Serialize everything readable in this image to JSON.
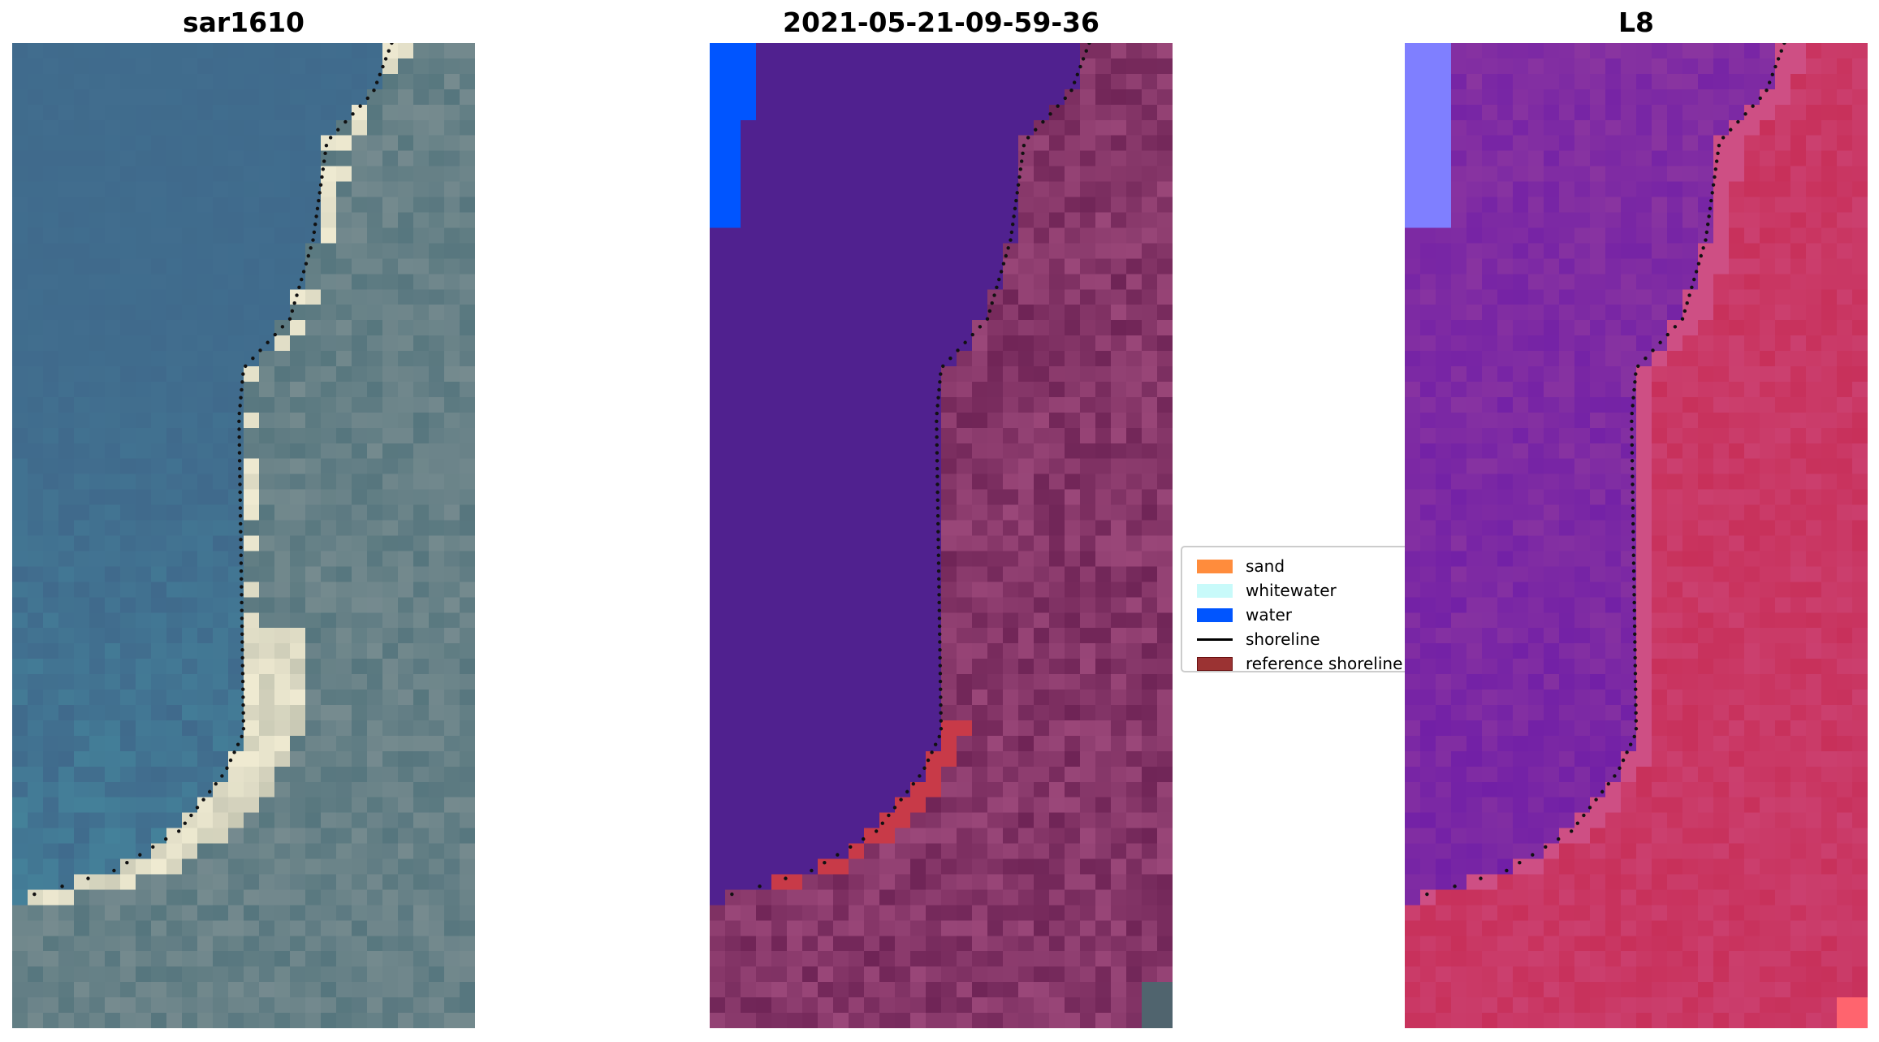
{
  "panels": [
    {
      "title": "sar1610",
      "kind": "rgb-image"
    },
    {
      "title": "2021-05-21-09-59-36",
      "kind": "classified-image"
    },
    {
      "title": "L8",
      "kind": "index-image"
    }
  ],
  "legend": {
    "items": [
      {
        "label": "sand",
        "color": "#ff8c3c",
        "type": "patch"
      },
      {
        "label": "whitewater",
        "color": "#c8fafa",
        "type": "patch"
      },
      {
        "label": "water",
        "color": "#0055ff",
        "type": "patch"
      },
      {
        "label": "shoreline",
        "color": "#000000",
        "type": "line"
      },
      {
        "label": "reference shoreline b",
        "color": "#9b3333",
        "type": "patch"
      }
    ]
  },
  "colors": {
    "water_class": "#50218f",
    "land_class": "#6f2456",
    "sand_class": "#c83a48",
    "l8_water": "#8a35a0",
    "l8_land": "#c8305a",
    "l8_blue": "#7f7fff",
    "sar_water": "#406a8c",
    "sar_land": "#56767e"
  }
}
